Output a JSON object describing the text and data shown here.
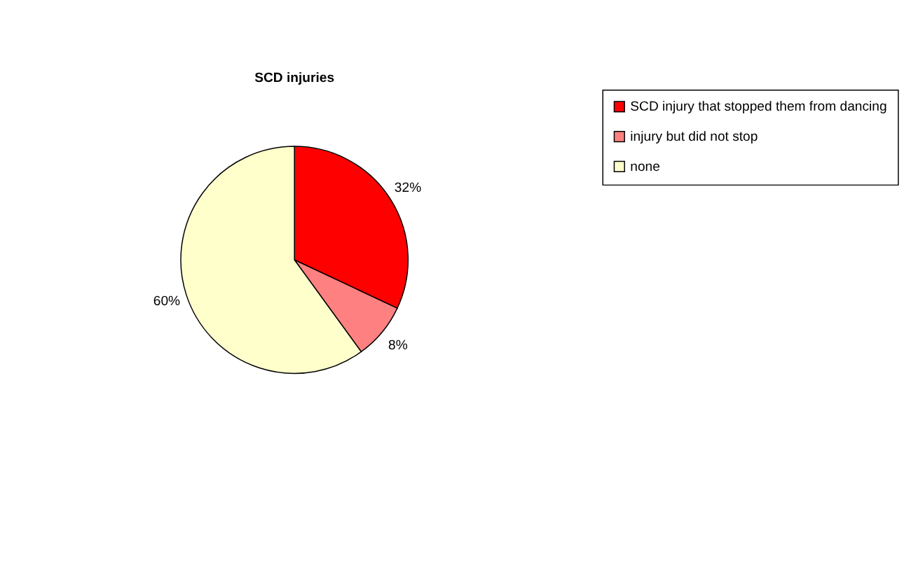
{
  "chart_data": {
    "type": "pie",
    "title": "SCD injuries",
    "categories": [
      "SCD injury that stopped them from dancing",
      "injury but did not stop",
      "none"
    ],
    "values": [
      32,
      8,
      60
    ],
    "colors": [
      "#ff0000",
      "#ff8080",
      "#ffffcc"
    ],
    "value_labels": [
      "32%",
      "8%",
      "60%"
    ],
    "legend": "right"
  }
}
